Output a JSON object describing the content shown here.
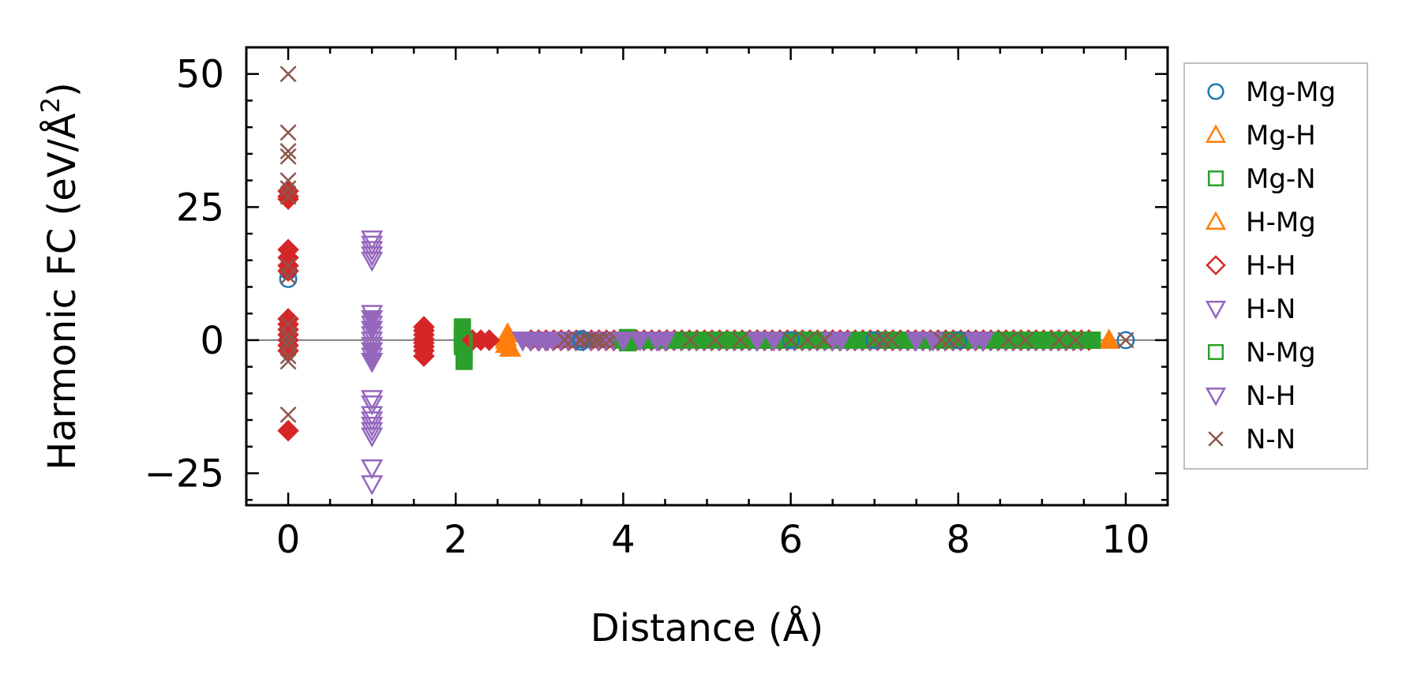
{
  "chart_data": {
    "type": "scatter",
    "title": "",
    "xlabel": "Distance (Å)",
    "ylabel": "Harmonic FC (eV/Å",
    "ylabel_superscript": "2",
    "ylabel_close": ")",
    "xlim": [
      -0.5,
      10.5
    ],
    "ylim": [
      -31,
      55
    ],
    "xticks": [
      0,
      2,
      4,
      6,
      8,
      10
    ],
    "xtick_labels": [
      "0",
      "2",
      "4",
      "6",
      "8",
      "10"
    ],
    "yticks": [
      -25,
      0,
      25,
      50
    ],
    "ytick_labels": [
      "−25",
      "0",
      "25",
      "50"
    ],
    "zero_line": true,
    "grid": false,
    "legend_position": "right, outside plot",
    "series": [
      {
        "name": "Mg-Mg",
        "marker": "circle",
        "color": "#1f77b4",
        "filled": false,
        "x": [
          0,
          0,
          3.5,
          3.5,
          6.0,
          7.0,
          8.0,
          10.0
        ],
        "y": [
          11.5,
          13,
          -0.3,
          0.2,
          0,
          0,
          0,
          0
        ]
      },
      {
        "name": "Mg-H",
        "marker": "triangle-up",
        "color": "#ff7f0e",
        "filled": true,
        "x": [
          2.6,
          2.6,
          2.62,
          2.65,
          9.8
        ],
        "y": [
          -0.8,
          0.5,
          1.2,
          -1.5,
          0
        ]
      },
      {
        "name": "Mg-N",
        "marker": "square",
        "color": "#2ca02c",
        "filled": true,
        "x": [
          2.08,
          2.08,
          2.08,
          2.08,
          2.08,
          2.08,
          2.1,
          2.1,
          2.1,
          4.05,
          4.05,
          4.1,
          5.3,
          5.8,
          7.2,
          9.6
        ],
        "y": [
          2.5,
          1.8,
          1.0,
          0.3,
          -0.5,
          -1.2,
          -2.0,
          -3.0,
          -4.0,
          0.5,
          -0.5,
          0,
          0,
          0,
          0,
          0
        ]
      },
      {
        "name": "H-Mg",
        "marker": "triangle-up",
        "color": "#ff7f0e",
        "filled": false,
        "x": [
          2.6,
          9.8
        ],
        "y": [
          0,
          0
        ]
      },
      {
        "name": "H-H",
        "marker": "diamond",
        "color": "#d62728",
        "filled": true,
        "x": [
          0,
          0,
          0,
          0,
          0,
          0,
          0,
          0,
          0,
          0,
          0,
          0,
          0,
          0,
          0,
          1.62,
          1.62,
          1.62,
          1.62,
          1.62,
          1.62,
          1.62,
          1.62,
          2.2,
          2.3,
          2.4
        ],
        "y": [
          28,
          27,
          26.5,
          17,
          15.5,
          14,
          13,
          4,
          3,
          2,
          1,
          0,
          -1,
          -2,
          -17,
          2.5,
          1.8,
          1.0,
          0.2,
          -0.5,
          -1.2,
          -2.0,
          -3.0,
          0,
          0,
          0
        ]
      },
      {
        "name": "H-N",
        "marker": "triangle-down",
        "color": "#9467bd",
        "filled": false,
        "x": [
          1.0,
          1.0,
          1.0,
          1.0,
          1.0,
          1.0,
          1.0,
          1.0,
          1.0,
          1.0,
          1.0,
          1.0,
          1.0,
          1.0,
          1.0,
          1.0,
          1.0,
          1.0,
          1.0,
          1.0,
          1.0,
          1.0,
          1.0,
          1.0
        ],
        "y": [
          19,
          18,
          17,
          16,
          15,
          5,
          4,
          3,
          2,
          1,
          0,
          -1,
          -2,
          -3,
          -4,
          -11,
          -12,
          -14,
          -15,
          -16,
          -17,
          -18,
          -24,
          -27
        ]
      },
      {
        "name": "N-Mg",
        "marker": "square",
        "color": "#2ca02c",
        "filled": false,
        "x": [
          2.08,
          2.1,
          9.6
        ],
        "y": [
          0,
          -0.2,
          0
        ]
      },
      {
        "name": "N-H",
        "marker": "triangle-down",
        "color": "#9467bd",
        "filled": true,
        "x": [
          1.0,
          1.0,
          1.0,
          1.0,
          2.8,
          2.9,
          3.0,
          3.1,
          4.0,
          4.2,
          4.4,
          4.5,
          5.6,
          5.8,
          6.5,
          6.6,
          7.5,
          7.7,
          8.2,
          8.3
        ],
        "y": [
          4,
          2,
          -2,
          -4,
          0,
          0,
          0,
          0,
          0,
          0,
          0,
          0,
          0,
          0,
          0,
          0,
          0,
          0,
          0,
          0
        ]
      },
      {
        "name": "N-N",
        "marker": "x",
        "color": "#8c564b",
        "filled": false,
        "x": [
          0,
          0,
          0,
          0,
          0,
          0,
          0,
          0,
          0,
          0,
          0,
          0,
          0,
          0,
          0,
          0,
          3.5,
          3.6,
          3.7,
          4.8,
          5.1,
          5.4,
          6.0,
          6.2,
          6.4,
          7.0,
          7.1,
          7.2,
          7.8,
          7.9,
          8.0,
          8.6,
          8.8,
          9.2,
          9.4,
          10.0
        ],
        "y": [
          50,
          39,
          35.5,
          34.5,
          30,
          28.5,
          27,
          14,
          12,
          3,
          1,
          0,
          -1,
          -3,
          -4,
          -14,
          0,
          0,
          0,
          0,
          0,
          0,
          0,
          0,
          0,
          0,
          0,
          0,
          0,
          0,
          0,
          0,
          0,
          0,
          0,
          0
        ]
      }
    ],
    "dense_bands": [
      {
        "series": "H-H",
        "x_range": [
          2.9,
          9.6
        ],
        "y": 0
      },
      {
        "series": "N-H",
        "x_range": [
          2.8,
          9.5
        ],
        "y": 0
      },
      {
        "series": "N-N",
        "x_range": [
          3.3,
          9.5
        ],
        "y": 0
      },
      {
        "series": "Mg-N",
        "x_range": [
          4.0,
          9.6
        ],
        "y": 0
      }
    ]
  }
}
